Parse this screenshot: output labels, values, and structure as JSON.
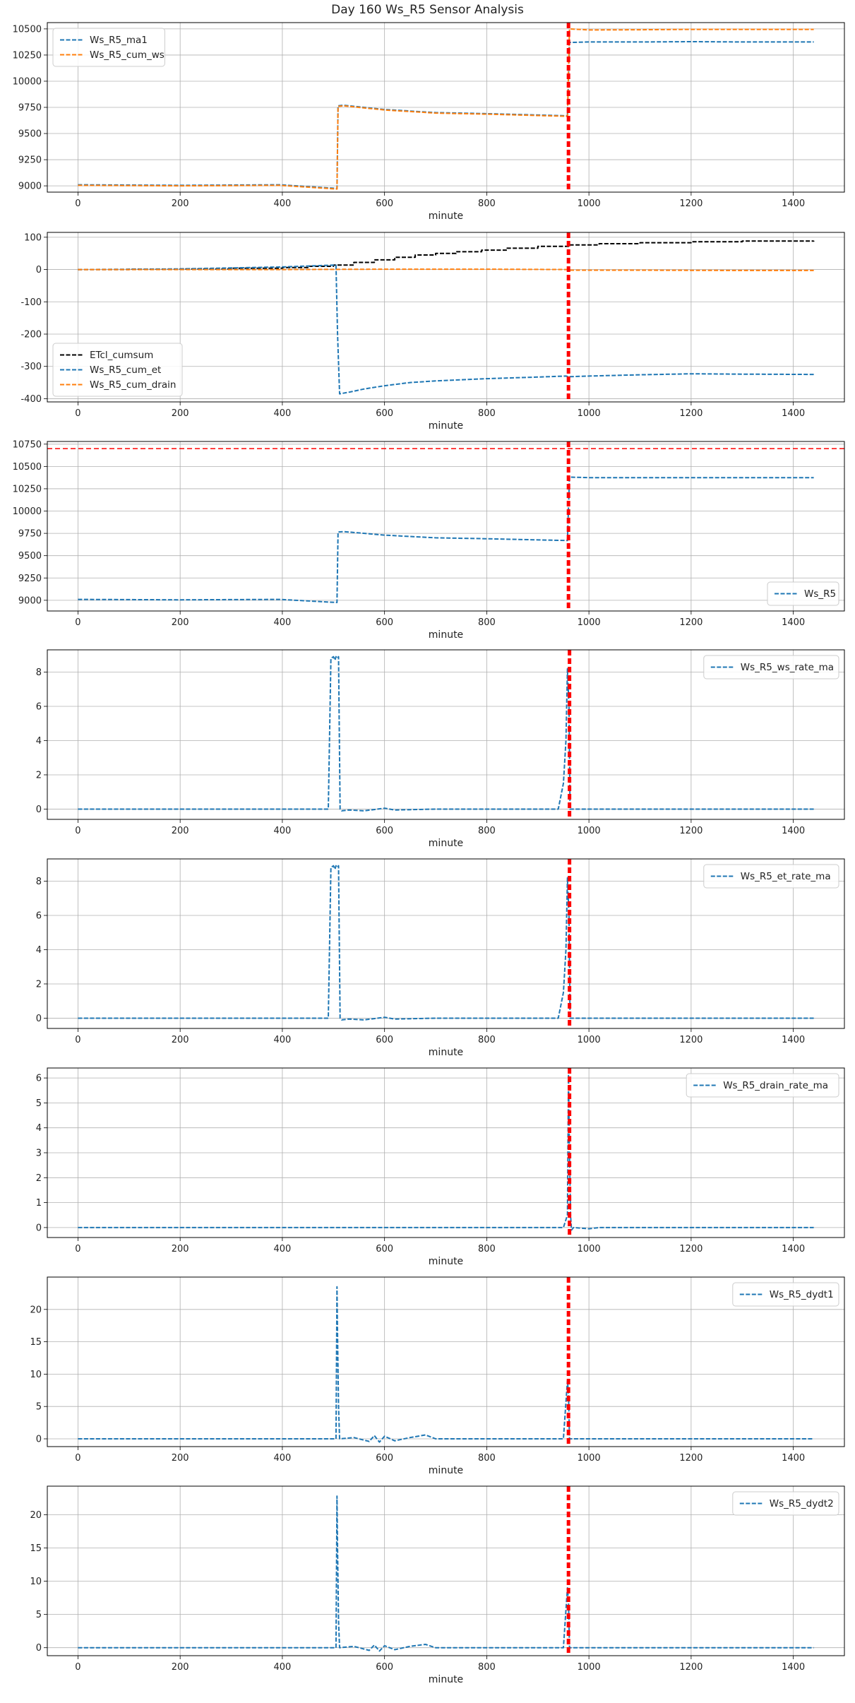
{
  "figure": {
    "title": "Day 160 Ws_R5 Sensor Analysis"
  },
  "colors": {
    "blue": "#1f77b4",
    "orange": "#ff7f0e",
    "black": "#000000",
    "red": "#ff0000",
    "grid": "#b0b0b0"
  },
  "chart_data": [
    {
      "type": "line",
      "xlabel": "minute",
      "xlim": [
        -60,
        1500
      ],
      "ylim": [
        8940,
        10560
      ],
      "xticks": [
        0,
        200,
        400,
        600,
        800,
        1000,
        1200,
        1400
      ],
      "yticks": [
        9000,
        9250,
        9500,
        9750,
        10000,
        10250,
        10500
      ],
      "grid": true,
      "legend": "top-left",
      "vline": 960,
      "series": [
        {
          "name": "Ws_R5_ma1",
          "color": "blue",
          "x": [
            0,
            200,
            395,
            507,
            509,
            520,
            600,
            700,
            800,
            955,
            958,
            962,
            1000,
            1100,
            1200,
            1300,
            1440
          ],
          "y": [
            9010,
            9005,
            9010,
            8975,
            9765,
            9770,
            9730,
            9700,
            9690,
            9670,
            9670,
            10370,
            10375,
            10375,
            10378,
            10375,
            10375
          ]
        },
        {
          "name": "Ws_R5_cum_ws",
          "color": "orange",
          "x": [
            0,
            200,
            395,
            507,
            509,
            520,
            600,
            700,
            800,
            955,
            958,
            962,
            1000,
            1100,
            1200,
            1300,
            1440
          ],
          "y": [
            9005,
            9000,
            9005,
            8970,
            9760,
            9765,
            9725,
            9695,
            9685,
            9665,
            9665,
            10500,
            10490,
            10492,
            10495,
            10495,
            10495
          ]
        }
      ]
    },
    {
      "type": "line",
      "xlabel": "minute",
      "xlim": [
        -60,
        1500
      ],
      "ylim": [
        -410,
        115
      ],
      "xticks": [
        0,
        200,
        400,
        600,
        800,
        1000,
        1200,
        1400
      ],
      "yticks": [
        100,
        0,
        -100,
        -200,
        -300,
        -400
      ],
      "grid": true,
      "legend": "bottom-left",
      "vline": 960,
      "series": [
        {
          "name": "ETcl_cumsum",
          "color": "black",
          "step": true,
          "x": [
            0,
            100,
            200,
            300,
            400,
            450,
            500,
            540,
            580,
            620,
            660,
            700,
            740,
            790,
            840,
            900,
            960,
            1020,
            1100,
            1200,
            1300,
            1440
          ],
          "y": [
            0,
            1,
            2,
            4,
            6,
            10,
            14,
            22,
            30,
            38,
            45,
            50,
            55,
            60,
            66,
            72,
            76,
            80,
            83,
            86,
            88,
            89
          ]
        },
        {
          "name": "Ws_R5_cum_et",
          "color": "blue",
          "x": [
            0,
            200,
            400,
            505,
            508,
            512,
            530,
            560,
            600,
            650,
            700,
            800,
            900,
            955,
            960,
            1000,
            1100,
            1200,
            1300,
            1440
          ],
          "y": [
            0,
            2,
            8,
            14,
            -200,
            -385,
            -380,
            -370,
            -360,
            -350,
            -345,
            -338,
            -333,
            -330,
            -332,
            -330,
            -326,
            -323,
            -324,
            -325
          ]
        },
        {
          "name": "Ws_R5_cum_drain",
          "color": "orange",
          "x": [
            0,
            200,
            400,
            600,
            800,
            960,
            962,
            1100,
            1300,
            1440
          ],
          "y": [
            0,
            0,
            0,
            1,
            1,
            0,
            -2,
            -2,
            -3,
            -3
          ]
        }
      ]
    },
    {
      "type": "line",
      "xlabel": "minute",
      "xlim": [
        -60,
        1500
      ],
      "ylim": [
        8880,
        10780
      ],
      "xticks": [
        0,
        200,
        400,
        600,
        800,
        1000,
        1200,
        1400
      ],
      "yticks": [
        9000,
        9250,
        9500,
        9750,
        10000,
        10250,
        10500,
        10750
      ],
      "grid": true,
      "legend": "bottom-right",
      "vline": 960,
      "hline": 10700,
      "series": [
        {
          "name": "Ws_R5",
          "color": "blue",
          "x": [
            0,
            200,
            395,
            507,
            509,
            520,
            600,
            700,
            800,
            955,
            958,
            962,
            1000,
            1100,
            1200,
            1300,
            1440
          ],
          "y": [
            9010,
            9005,
            9010,
            8975,
            9765,
            9770,
            9730,
            9700,
            9690,
            9670,
            9670,
            10380,
            10375,
            10375,
            10375,
            10375,
            10375
          ]
        }
      ]
    },
    {
      "type": "line",
      "xlabel": "minute",
      "xlim": [
        -60,
        1500
      ],
      "ylim": [
        -0.6,
        9.3
      ],
      "xticks": [
        0,
        200,
        400,
        600,
        800,
        1000,
        1200,
        1400
      ],
      "yticks": [
        0,
        2,
        4,
        6,
        8
      ],
      "grid": true,
      "legend": "top-right",
      "vline": 962,
      "series": [
        {
          "name": "Ws_R5_ws_rate_ma",
          "color": "blue",
          "x": [
            0,
            200,
            490,
            495,
            500,
            503,
            505,
            507,
            510,
            513,
            516,
            530,
            560,
            600,
            620,
            700,
            800,
            940,
            950,
            955,
            958,
            961,
            963,
            966,
            1000,
            1200,
            1440
          ],
          "y": [
            0,
            0,
            0,
            8.8,
            8.9,
            8.7,
            8.9,
            8.8,
            8.9,
            0,
            -0.1,
            -0.05,
            -0.1,
            0.05,
            -0.05,
            0,
            0,
            0,
            1.5,
            4,
            8.2,
            6,
            0,
            0,
            0,
            0,
            0
          ]
        }
      ]
    },
    {
      "type": "line",
      "xlabel": "minute",
      "xlim": [
        -60,
        1500
      ],
      "ylim": [
        -0.6,
        9.3
      ],
      "xticks": [
        0,
        200,
        400,
        600,
        800,
        1000,
        1200,
        1400
      ],
      "yticks": [
        0,
        2,
        4,
        6,
        8
      ],
      "grid": true,
      "legend": "top-right",
      "vline": 962,
      "series": [
        {
          "name": "Ws_R5_et_rate_ma",
          "color": "blue",
          "x": [
            0,
            200,
            490,
            495,
            500,
            503,
            505,
            507,
            510,
            513,
            516,
            530,
            560,
            600,
            620,
            700,
            800,
            940,
            950,
            955,
            958,
            961,
            963,
            966,
            1000,
            1200,
            1440
          ],
          "y": [
            0,
            0,
            0,
            8.8,
            8.9,
            8.7,
            8.9,
            8.8,
            8.9,
            0,
            -0.1,
            -0.05,
            -0.1,
            0.05,
            -0.05,
            0,
            0,
            0,
            1.5,
            4,
            8.2,
            6,
            0,
            0,
            0,
            0,
            0
          ]
        }
      ]
    },
    {
      "type": "line",
      "xlabel": "minute",
      "xlim": [
        -60,
        1500
      ],
      "ylim": [
        -0.4,
        6.4
      ],
      "xticks": [
        0,
        200,
        400,
        600,
        800,
        1000,
        1200,
        1400
      ],
      "yticks": [
        0,
        1,
        2,
        3,
        4,
        5,
        6
      ],
      "grid": true,
      "legend": "top-right",
      "vline": 962,
      "series": [
        {
          "name": "Ws_R5_drain_rate_ma",
          "color": "blue",
          "x": [
            0,
            200,
            480,
            500,
            700,
            950,
            958,
            960,
            962,
            964,
            966,
            970,
            1000,
            1020,
            1100,
            1440
          ],
          "y": [
            0,
            0,
            0,
            0,
            0,
            0,
            0.5,
            6.1,
            3,
            0.5,
            -0.1,
            0,
            -0.05,
            0,
            0,
            0
          ]
        }
      ]
    },
    {
      "type": "line",
      "xlabel": "minute",
      "xlim": [
        -60,
        1500
      ],
      "ylim": [
        -1.2,
        25.0
      ],
      "xticks": [
        0,
        200,
        400,
        600,
        800,
        1000,
        1200,
        1400
      ],
      "yticks": [
        0,
        5,
        10,
        15,
        20
      ],
      "grid": true,
      "legend": "top-right",
      "vline": 960,
      "series": [
        {
          "name": "Ws_R5_dydt1",
          "color": "blue",
          "x": [
            0,
            200,
            400,
            505,
            507,
            508,
            510,
            512,
            540,
            570,
            580,
            590,
            600,
            620,
            650,
            680,
            700,
            800,
            950,
            958,
            960,
            962,
            1000,
            1200,
            1440
          ],
          "y": [
            0,
            0,
            0,
            0,
            23.5,
            16,
            5,
            0,
            0.2,
            -0.4,
            0.5,
            -0.5,
            0.4,
            -0.3,
            0.2,
            0.6,
            0,
            0,
            0,
            9,
            7,
            0,
            0,
            0,
            0
          ]
        }
      ]
    },
    {
      "type": "line",
      "xlabel": "minute",
      "xlim": [
        -60,
        1500
      ],
      "ylim": [
        -1.2,
        24.3
      ],
      "xticks": [
        0,
        200,
        400,
        600,
        800,
        1000,
        1200,
        1400
      ],
      "yticks": [
        0,
        5,
        10,
        15,
        20
      ],
      "grid": true,
      "legend": "top-right",
      "vline": 960,
      "series": [
        {
          "name": "Ws_R5_dydt2",
          "color": "blue",
          "x": [
            0,
            200,
            400,
            505,
            507,
            508,
            510,
            512,
            540,
            570,
            580,
            590,
            600,
            620,
            650,
            680,
            700,
            800,
            950,
            958,
            960,
            962,
            1000,
            1200,
            1440
          ],
          "y": [
            0,
            0,
            0,
            0,
            22.8,
            15,
            4,
            0,
            0.2,
            -0.4,
            0.4,
            -0.5,
            0.3,
            -0.3,
            0.2,
            0.5,
            0,
            0,
            0,
            9,
            7,
            0,
            0,
            0,
            0
          ]
        }
      ]
    }
  ]
}
